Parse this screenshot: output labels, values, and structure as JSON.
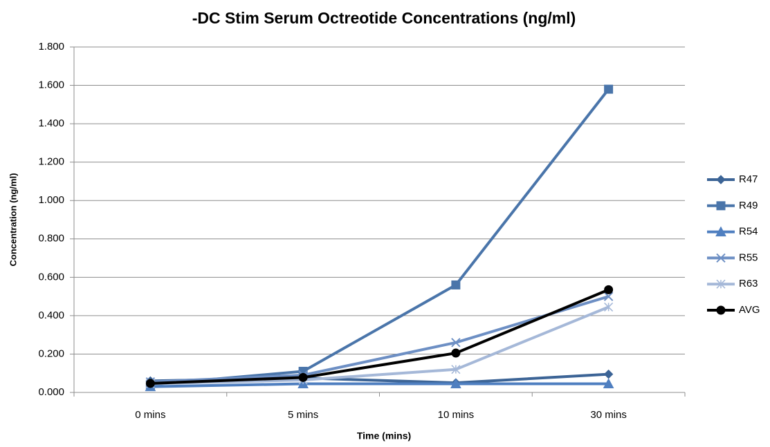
{
  "chart_data": {
    "type": "line",
    "title": "-DC Stim Serum Octreotide Concentrations (ng/ml)",
    "x_label": "Time (mins)",
    "y_label": "Concentration (ng/ml)",
    "categories": [
      "0 mins",
      "5 mins",
      "10 mins",
      "30 mins"
    ],
    "series": [
      {
        "name": "R47",
        "color": "#3c6496",
        "marker": "diamond",
        "values": [
          0.06,
          0.075,
          0.05,
          0.095
        ]
      },
      {
        "name": "R49",
        "color": "#4a75aa",
        "marker": "square",
        "values": [
          0.04,
          0.11,
          0.56,
          1.58
        ]
      },
      {
        "name": "R54",
        "color": "#4f7fc0",
        "marker": "triangle",
        "values": [
          0.03,
          0.045,
          0.045,
          0.045
        ]
      },
      {
        "name": "R55",
        "color": "#6d8fc4",
        "marker": "x",
        "values": [
          0.055,
          0.09,
          0.26,
          0.5
        ]
      },
      {
        "name": "R63",
        "color": "#a5b8d8",
        "marker": "star",
        "values": [
          0.045,
          0.065,
          0.12,
          0.445
        ]
      },
      {
        "name": "AVG",
        "color": "#000000",
        "marker": "circle",
        "values": [
          0.047,
          0.078,
          0.205,
          0.535
        ]
      }
    ],
    "ylim": [
      0,
      1.8
    ],
    "yticks": [
      {
        "value": 0,
        "label": "0.000"
      },
      {
        "value": 0.2,
        "label": "0.200"
      },
      {
        "value": 0.4,
        "label": "0.400"
      },
      {
        "value": 0.6,
        "label": "0.600"
      },
      {
        "value": 0.8,
        "label": "0.800"
      },
      {
        "value": 1.0,
        "label": "1.000"
      },
      {
        "value": 1.2,
        "label": "1.200"
      },
      {
        "value": 1.4,
        "label": "1.400"
      },
      {
        "value": 1.6,
        "label": "1.600"
      },
      {
        "value": 1.8,
        "label": "1.800"
      }
    ],
    "grid": true,
    "legend": "right"
  }
}
